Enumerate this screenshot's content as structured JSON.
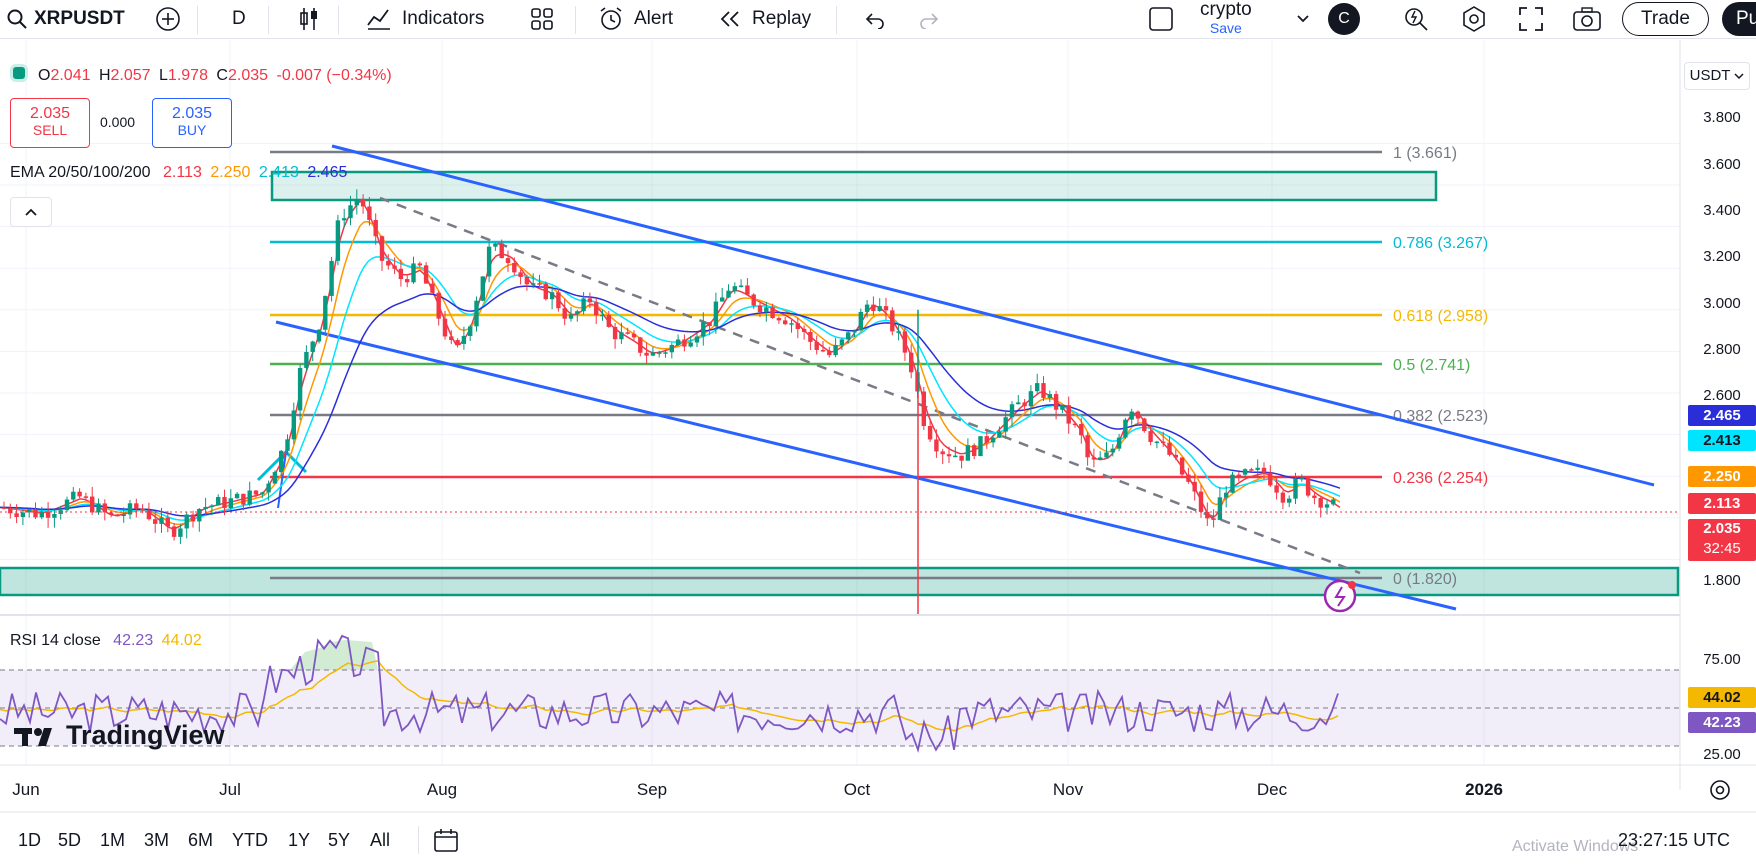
{
  "toolbar": {
    "symbol": "XRPUSDT",
    "interval": "D",
    "indicators": "Indicators",
    "alert": "Alert",
    "replay": "Replay",
    "layout_name": "crypto",
    "layout_save": "Save",
    "avatar": "C",
    "trade": "Trade",
    "cut_button": "Pu"
  },
  "ohlc": {
    "o_label": "O",
    "o": "2.041",
    "h_label": "H",
    "h": "2.057",
    "l_label": "L",
    "l": "1.978",
    "c_label": "C",
    "c": "2.035",
    "change": "-0.007 (−0.34%)"
  },
  "trade_boxes": {
    "sell_price": "2.035",
    "sell_label": "SELL",
    "spread": "0.000",
    "buy_price": "2.035",
    "buy_label": "BUY"
  },
  "ema": {
    "label": "EMA 20/50/100/200",
    "v20": "2.113",
    "v50": "2.250",
    "v100": "2.413",
    "v200": "2.465"
  },
  "rsi": {
    "label": "RSI 14 close",
    "value": "42.23",
    "ma": "44.02"
  },
  "currency": "USDT",
  "price_axis": [
    "3.800",
    "3.600",
    "3.400",
    "3.200",
    "3.000",
    "2.800",
    "2.600",
    "1.800"
  ],
  "price_tags": {
    "ema200": "2.465",
    "ema100": "2.413",
    "ema50": "2.250",
    "ema20": "2.113",
    "last": "2.035",
    "countdown": "32:45"
  },
  "rsi_axis": [
    "75.00",
    "25.00"
  ],
  "rsi_tags": {
    "ma": "44.02",
    "rsi": "42.23"
  },
  "fib": [
    {
      "label": "1 (3.661)",
      "color": "#787b86"
    },
    {
      "label": "0.786 (3.267)",
      "color": "#00bcd4"
    },
    {
      "label": "0.618 (2.958)",
      "color": "#f5b800"
    },
    {
      "label": "0.5 (2.741)",
      "color": "#4caf50"
    },
    {
      "label": "0.382 (2.523)",
      "color": "#787b86"
    },
    {
      "label": "0.236 (2.254)",
      "color": "#f23645"
    },
    {
      "label": "0 (1.820)",
      "color": "#787b86"
    }
  ],
  "time_axis": [
    "Jun",
    "Jul",
    "Aug",
    "Sep",
    "Oct",
    "Nov",
    "Dec",
    "2026"
  ],
  "timeframes": [
    "1D",
    "5D",
    "1M",
    "3M",
    "6M",
    "YTD",
    "1Y",
    "5Y",
    "All"
  ],
  "clock": "23:27:15 UTC",
  "watermark": "Activate Windows",
  "logo": "TradingView",
  "colors": {
    "up": "#089981",
    "down": "#f23645",
    "channel": "#2962ff",
    "zone": "#089981"
  }
}
